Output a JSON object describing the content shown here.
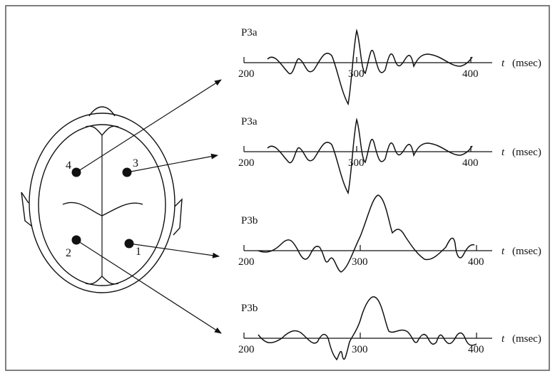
{
  "electrodes": [
    {
      "label": "1"
    },
    {
      "label": "2"
    },
    {
      "label": "3"
    },
    {
      "label": "4"
    }
  ],
  "panels": [
    {
      "title": "P3a",
      "ticks": [
        "200",
        "300",
        "400"
      ],
      "axis_label": "t",
      "unit": "(msec)"
    },
    {
      "title": "P3a",
      "ticks": [
        "200",
        "300",
        "400"
      ],
      "axis_label": "t",
      "unit": "(msec)"
    },
    {
      "title": "P3b",
      "ticks": [
        "200",
        "300",
        "400"
      ],
      "axis_label": "t",
      "unit": "(msec)"
    },
    {
      "title": "P3b",
      "ticks": [
        "200",
        "300",
        "400"
      ],
      "axis_label": "t",
      "unit": "(msec)"
    }
  ]
}
